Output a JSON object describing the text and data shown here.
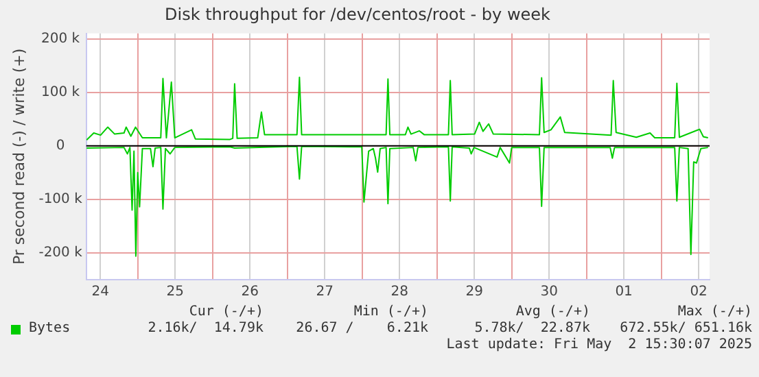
{
  "chart_data": {
    "type": "line",
    "title": "Disk throughput for /dev/centos/root - by week",
    "ylabel": "Pr second read (-) / write (+)",
    "xlim": [
      "2025-04-24T07:30",
      "2025-05-02T15:30"
    ],
    "xticks": [
      {
        "value": "2025-04-24T12:00",
        "label": "24"
      },
      {
        "value": "2025-04-25T00:00",
        "label": null
      },
      {
        "value": "2025-04-25T12:00",
        "label": "25"
      },
      {
        "value": "2025-04-26T00:00",
        "label": null
      },
      {
        "value": "2025-04-26T12:00",
        "label": "26"
      },
      {
        "value": "2025-04-27T00:00",
        "label": null
      },
      {
        "value": "2025-04-27T12:00",
        "label": "27"
      },
      {
        "value": "2025-04-28T00:00",
        "label": null
      },
      {
        "value": "2025-04-28T12:00",
        "label": "28"
      },
      {
        "value": "2025-04-29T00:00",
        "label": null
      },
      {
        "value": "2025-04-29T12:00",
        "label": "29"
      },
      {
        "value": "2025-04-30T00:00",
        "label": null
      },
      {
        "value": "2025-04-30T12:00",
        "label": "30"
      },
      {
        "value": "2025-05-01T00:00",
        "label": null
      },
      {
        "value": "2025-05-01T12:00",
        "label": "01"
      },
      {
        "value": "2025-05-02T00:00",
        "label": null
      },
      {
        "value": "2025-05-02T12:00",
        "label": "02"
      }
    ],
    "ylim": [
      -250000,
      210000
    ],
    "yticks": [
      {
        "value": -200000,
        "label": "-200 k"
      },
      {
        "value": -100000,
        "label": "-100 k"
      },
      0,
      {
        "value": 100000,
        "label": "100 k"
      },
      {
        "value": 200000,
        "label": "200 k"
      }
    ],
    "grid": true,
    "legend": "bottom",
    "marker": "none",
    "line_style": "solid",
    "ref_lines": [
      {
        "axis": "y",
        "value": 0,
        "color": "#000000"
      }
    ],
    "series": [
      {
        "name": "Bytes",
        "color": "#00cc00",
        "x": [
          "2025-04-24T07:36",
          "2025-04-24T09:54",
          "2025-04-24T12:06",
          "2025-04-24T14:24",
          "2025-04-24T16:36",
          "2025-04-24T19:36",
          "2025-04-24T20:18",
          "2025-04-24T21:48",
          "2025-04-24T23:18",
          "2025-04-25T01:30",
          "2025-04-25T07:24",
          "2025-04-25T08:06",
          "2025-04-25T09:12",
          "2025-04-25T10:48",
          "2025-04-25T11:54",
          "2025-04-25T17:18",
          "2025-04-25T18:30",
          "2025-04-26T05:36",
          "2025-04-26T06:30",
          "2025-04-26T07:06",
          "2025-04-26T07:54",
          "2025-04-26T14:30",
          "2025-04-26T15:42",
          "2025-04-26T16:42",
          "2025-04-27T03:06",
          "2025-04-27T03:54",
          "2025-04-27T04:36",
          "2025-04-28T02:06",
          "2025-04-28T07:42",
          "2025-04-28T08:18",
          "2025-04-28T08:54",
          "2025-04-28T13:54",
          "2025-04-28T14:42",
          "2025-04-28T15:42",
          "2025-04-28T18:24",
          "2025-04-28T19:54",
          "2025-04-29T03:42",
          "2025-04-29T04:18",
          "2025-04-29T04:54",
          "2025-04-29T12:06",
          "2025-04-29T13:36",
          "2025-04-29T14:48",
          "2025-04-29T16:36",
          "2025-04-29T18:06",
          "2025-04-30T08:54",
          "2025-04-30T09:36",
          "2025-04-30T10:24",
          "2025-04-30T12:36",
          "2025-04-30T15:36",
          "2025-04-30T17:00",
          "2025-05-01T07:54",
          "2025-05-01T08:36",
          "2025-05-01T09:30",
          "2025-05-01T16:00",
          "2025-05-01T20:24",
          "2025-05-01T21:54",
          "2025-05-02T04:18",
          "2025-05-02T05:00",
          "2025-05-02T05:48",
          "2025-05-02T12:18",
          "2025-05-02T13:30",
          "2025-05-02T15:00"
        ],
        "values": [
          11000,
          24000,
          20000,
          35000,
          22000,
          24000,
          35000,
          18000,
          35000,
          15000,
          15000,
          126000,
          15000,
          119000,
          15000,
          30000,
          13000,
          12000,
          14000,
          116000,
          14000,
          15000,
          63000,
          21000,
          21000,
          128000,
          21000,
          21000,
          21000,
          125000,
          21000,
          21000,
          35000,
          22000,
          28000,
          21000,
          21000,
          122000,
          21000,
          22000,
          44000,
          27000,
          41000,
          22000,
          21000,
          127000,
          25000,
          30000,
          54000,
          25000,
          20000,
          122000,
          25000,
          16000,
          24000,
          15000,
          15000,
          117000,
          16000,
          31000,
          17000,
          15000
        ]
      },
      {
        "color": "#00cc00",
        "x": [
          "2025-04-24T07:36",
          "2025-04-24T19:36",
          "2025-04-24T20:42",
          "2025-04-24T21:30",
          "2025-04-24T22:12",
          "2025-04-24T22:48",
          "2025-04-24T23:24",
          "2025-04-25T00:00",
          "2025-04-25T00:36",
          "2025-04-25T01:30",
          "2025-04-25T04:06",
          "2025-04-25T04:54",
          "2025-04-25T05:36",
          "2025-04-25T07:24",
          "2025-04-25T08:06",
          "2025-04-25T08:54",
          "2025-04-25T10:24",
          "2025-04-25T11:54",
          "2025-04-26T05:36",
          "2025-04-26T07:06",
          "2025-04-27T03:06",
          "2025-04-27T03:54",
          "2025-04-27T04:36",
          "2025-04-27T23:54",
          "2025-04-28T00:36",
          "2025-04-28T02:06",
          "2025-04-28T03:36",
          "2025-04-28T04:18",
          "2025-04-28T05:00",
          "2025-04-28T05:48",
          "2025-04-28T07:42",
          "2025-04-28T08:18",
          "2025-04-28T08:54",
          "2025-04-28T16:24",
          "2025-04-28T17:12",
          "2025-04-28T17:54",
          "2025-04-29T03:42",
          "2025-04-29T04:18",
          "2025-04-29T04:54",
          "2025-04-29T10:24",
          "2025-04-29T11:00",
          "2025-04-29T11:54",
          "2025-04-29T19:18",
          "2025-04-29T20:18",
          "2025-04-29T23:18",
          "2025-04-30T00:00",
          "2025-04-30T08:54",
          "2025-04-30T09:36",
          "2025-04-30T10:24",
          "2025-05-01T07:36",
          "2025-05-01T08:18",
          "2025-05-01T09:00",
          "2025-05-02T04:18",
          "2025-05-02T05:00",
          "2025-05-02T05:48",
          "2025-05-02T08:36",
          "2025-05-02T09:30",
          "2025-05-02T10:24",
          "2025-05-02T11:18",
          "2025-05-02T12:42",
          "2025-05-02T15:00"
        ],
        "values": [
          -4000,
          -3000,
          -15000,
          -3000,
          -120000,
          -10000,
          -206000,
          -50000,
          -114000,
          -5000,
          -5000,
          -39000,
          -4000,
          -3000,
          -118000,
          -5000,
          -15000,
          -3000,
          -2000,
          -4000,
          -1000,
          -62000,
          -1000,
          -2000,
          -105000,
          -10000,
          -5000,
          -23000,
          -49000,
          -5000,
          -3000,
          -108000,
          -5000,
          -3000,
          -28000,
          -3000,
          -2000,
          -103000,
          -2000,
          -4000,
          -15000,
          -3000,
          -21000,
          -3000,
          -32000,
          -3000,
          -3000,
          -113000,
          -3000,
          -3000,
          -23000,
          -3000,
          -3000,
          -103000,
          -3000,
          -5000,
          -203000,
          -30000,
          -32000,
          -5000,
          -3000
        ]
      }
    ],
    "annotations": [
      "Cur (-/+)",
      "Min (-/+)",
      "Avg (-/+)",
      "Max (-/+)",
      "2.16k/  14.79k",
      "26.67 /    6.21k",
      "5.78k/  22.87k",
      "672.55k/ 651.16k",
      "Last update: Fri May  2 15:30:07 2025"
    ]
  }
}
